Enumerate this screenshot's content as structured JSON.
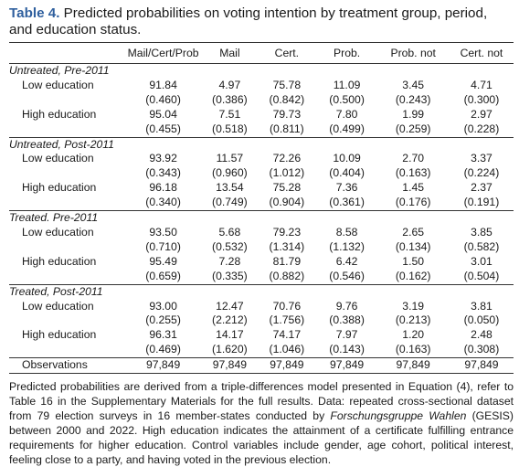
{
  "caption": {
    "label": "Table 4.",
    "text": "Predicted probabilities on voting intention by treatment group, period, and education status."
  },
  "columns": [
    "",
    "Mail/Cert/Prob",
    "Mail",
    "Cert.",
    "Prob.",
    "Prob. not",
    "Cert. not"
  ],
  "groups": [
    {
      "title": "Untreated, Pre-2011",
      "rows": [
        {
          "label": "Low education",
          "values": [
            "91.84",
            "4.97",
            "75.78",
            "11.09",
            "3.45",
            "4.71"
          ],
          "se": [
            "(0.460)",
            "(0.386)",
            "(0.842)",
            "(0.500)",
            "(0.243)",
            "(0.300)"
          ]
        },
        {
          "label": "High education",
          "values": [
            "95.04",
            "7.51",
            "79.73",
            "7.80",
            "1.99",
            "2.97"
          ],
          "se": [
            "(0.455)",
            "(0.518)",
            "(0.811)",
            "(0.499)",
            "(0.259)",
            "(0.228)"
          ]
        }
      ]
    },
    {
      "title": "Untreated, Post-2011",
      "rows": [
        {
          "label": "Low education",
          "values": [
            "93.92",
            "11.57",
            "72.26",
            "10.09",
            "2.70",
            "3.37"
          ],
          "se": [
            "(0.343)",
            "(0.960)",
            "(1.012)",
            "(0.404)",
            "(0.163)",
            "(0.224)"
          ]
        },
        {
          "label": "High education",
          "values": [
            "96.18",
            "13.54",
            "75.28",
            "7.36",
            "1.45",
            "2.37"
          ],
          "se": [
            "(0.340)",
            "(0.749)",
            "(0.904)",
            "(0.361)",
            "(0.176)",
            "(0.191)"
          ]
        }
      ]
    },
    {
      "title": "Treated. Pre-2011",
      "rows": [
        {
          "label": "Low education",
          "values": [
            "93.50",
            "5.68",
            "79.23",
            "8.58",
            "2.65",
            "3.85"
          ],
          "se": [
            "(0.710)",
            "(0.532)",
            "(1.314)",
            "(1.132)",
            "(0.134)",
            "(0.582)"
          ]
        },
        {
          "label": "High education",
          "values": [
            "95.49",
            "7.28",
            "81.79",
            "6.42",
            "1.50",
            "3.01"
          ],
          "se": [
            "(0.659)",
            "(0.335)",
            "(0.882)",
            "(0.546)",
            "(0.162)",
            "(0.504)"
          ]
        }
      ]
    },
    {
      "title": "Treated, Post-2011",
      "rows": [
        {
          "label": "Low education",
          "values": [
            "93.00",
            "12.47",
            "70.76",
            "9.76",
            "3.19",
            "3.81"
          ],
          "se": [
            "(0.255)",
            "(2.212)",
            "(1.756)",
            "(0.388)",
            "(0.213)",
            "(0.050)"
          ]
        },
        {
          "label": "High education",
          "values": [
            "96.31",
            "14.17",
            "74.17",
            "7.97",
            "1.20",
            "2.48"
          ],
          "se": [
            "(0.469)",
            "(1.620)",
            "(1.046)",
            "(0.143)",
            "(0.163)",
            "(0.308)"
          ]
        }
      ]
    }
  ],
  "observations": {
    "label": "Observations",
    "values": [
      "97,849",
      "97,849",
      "97,849",
      "97,849",
      "97,849",
      "97,849"
    ]
  },
  "note": {
    "before": "Predicted probabilities are derived from a triple-differences model presented in Equation (4), refer to Table 16 in the Supplementary Materials for the full results. Data: repeated cross-sectional dataset from 79 election surveys in 16 member-states conducted by ",
    "italic": "Forschungsgruppe Wahlen",
    "after": " (GESIS) between 2000 and 2022. High education indicates the attainment of a certificate fulfilling entrance requirements for higher education. Control variables include gender, age cohort, political interest, feeling close to a party, and having voted in the previous election."
  },
  "colors": {
    "caption_label": "#2f5f9e",
    "text": "#1a1a1a"
  }
}
